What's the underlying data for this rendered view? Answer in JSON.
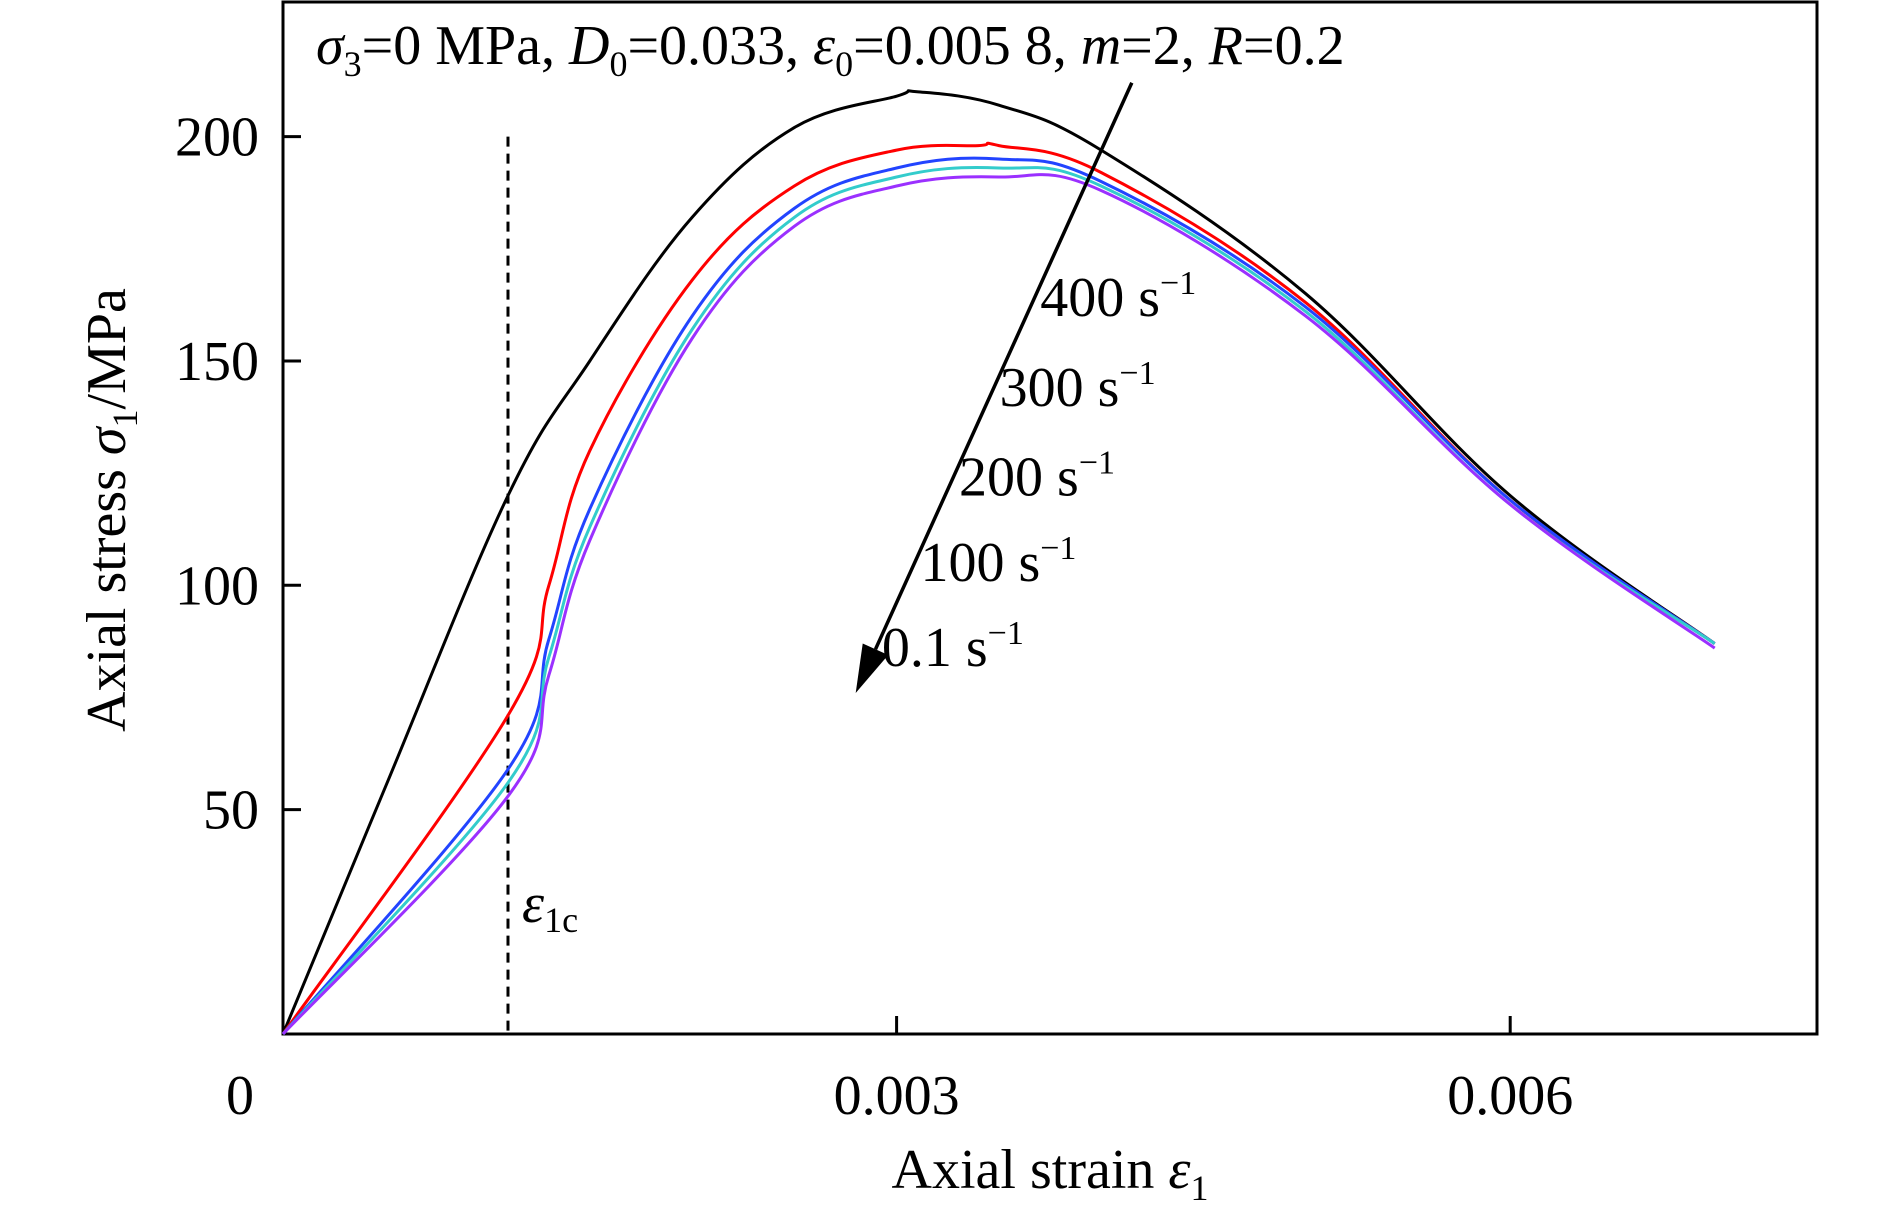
{
  "chart_data": {
    "type": "line",
    "annotation_params": {
      "sigma_sym": "σ",
      "sigma_sub": "3",
      "sigma_val": "=0 MPa, ",
      "d_sym": "D",
      "d_sub": "0",
      "d_val": "=0.033, ",
      "eps_sym": "ε",
      "eps_sub": "0",
      "eps_val": "=0.005 8, ",
      "m_sym": "m",
      "m_val": "=2, ",
      "r_sym": "R",
      "r_val": "=0.2"
    },
    "xlabel": {
      "text": "Axial strain ",
      "sym": "ε",
      "sub": "1"
    },
    "ylabel": {
      "text": "Axial stress ",
      "sym": "σ",
      "sub": "1",
      "unit": "/MPa"
    },
    "xlim": [
      0,
      0.0075
    ],
    "ylim": [
      0,
      230
    ],
    "x_ticks": [
      {
        "value": 0,
        "label": "0"
      },
      {
        "value": 0.003,
        "label": "0.003"
      },
      {
        "value": 0.006,
        "label": "0.006"
      }
    ],
    "y_ticks": [
      {
        "value": 50,
        "label": "50"
      },
      {
        "value": 100,
        "label": "100"
      },
      {
        "value": 150,
        "label": "150"
      },
      {
        "value": 200,
        "label": "200"
      }
    ],
    "threshold": {
      "x": 0.0011,
      "label_sym": "ε",
      "label_sub": "1c"
    },
    "arrow": {
      "from": [
        0.00415,
        212
      ],
      "to": [
        0.0028,
        76
      ]
    },
    "rate_labels": [
      "400 s",
      "300 s",
      "200 s",
      "100 s",
      "0.1 s"
    ],
    "rate_exponent": "−1",
    "series": [
      {
        "color": "#000000",
        "x": [
          0,
          0.0005,
          0.0011,
          0.0015,
          0.002,
          0.0025,
          0.003,
          0.0031,
          0.0035,
          0.004,
          0.005,
          0.006,
          0.007
        ],
        "y": [
          0,
          55,
          120,
          150,
          182,
          202,
          209,
          210,
          207,
          197,
          165,
          120,
          87
        ]
      },
      {
        "color": "#ff0000",
        "x": [
          0,
          0.0011,
          0.0013,
          0.0015,
          0.002,
          0.0025,
          0.003,
          0.0034,
          0.0035,
          0.004,
          0.005,
          0.006,
          0.007
        ],
        "y": [
          0,
          71,
          100,
          130,
          168,
          189,
          197,
          198,
          198,
          192,
          163,
          119,
          87
        ]
      },
      {
        "color": "#2244ff",
        "x": [
          0,
          0.0011,
          0.0013,
          0.0015,
          0.002,
          0.0025,
          0.003,
          0.0035,
          0.004,
          0.005,
          0.006,
          0.007
        ],
        "y": [
          0,
          59,
          88,
          117,
          160,
          184,
          193,
          195,
          190,
          162,
          119,
          87
        ]
      },
      {
        "color": "#33cccc",
        "x": [
          0,
          0.0011,
          0.0013,
          0.0015,
          0.002,
          0.0025,
          0.003,
          0.0035,
          0.004,
          0.005,
          0.006,
          0.007
        ],
        "y": [
          0,
          56,
          84,
          113,
          157,
          182,
          191,
          193,
          189,
          161,
          118,
          87
        ]
      },
      {
        "color": "#9b30ff",
        "x": [
          0,
          0.0011,
          0.0013,
          0.0015,
          0.002,
          0.0025,
          0.003,
          0.0035,
          0.004,
          0.005,
          0.006,
          0.007
        ],
        "y": [
          0,
          53,
          80,
          110,
          155,
          180,
          189,
          191,
          188,
          160,
          118,
          86
        ]
      }
    ]
  }
}
